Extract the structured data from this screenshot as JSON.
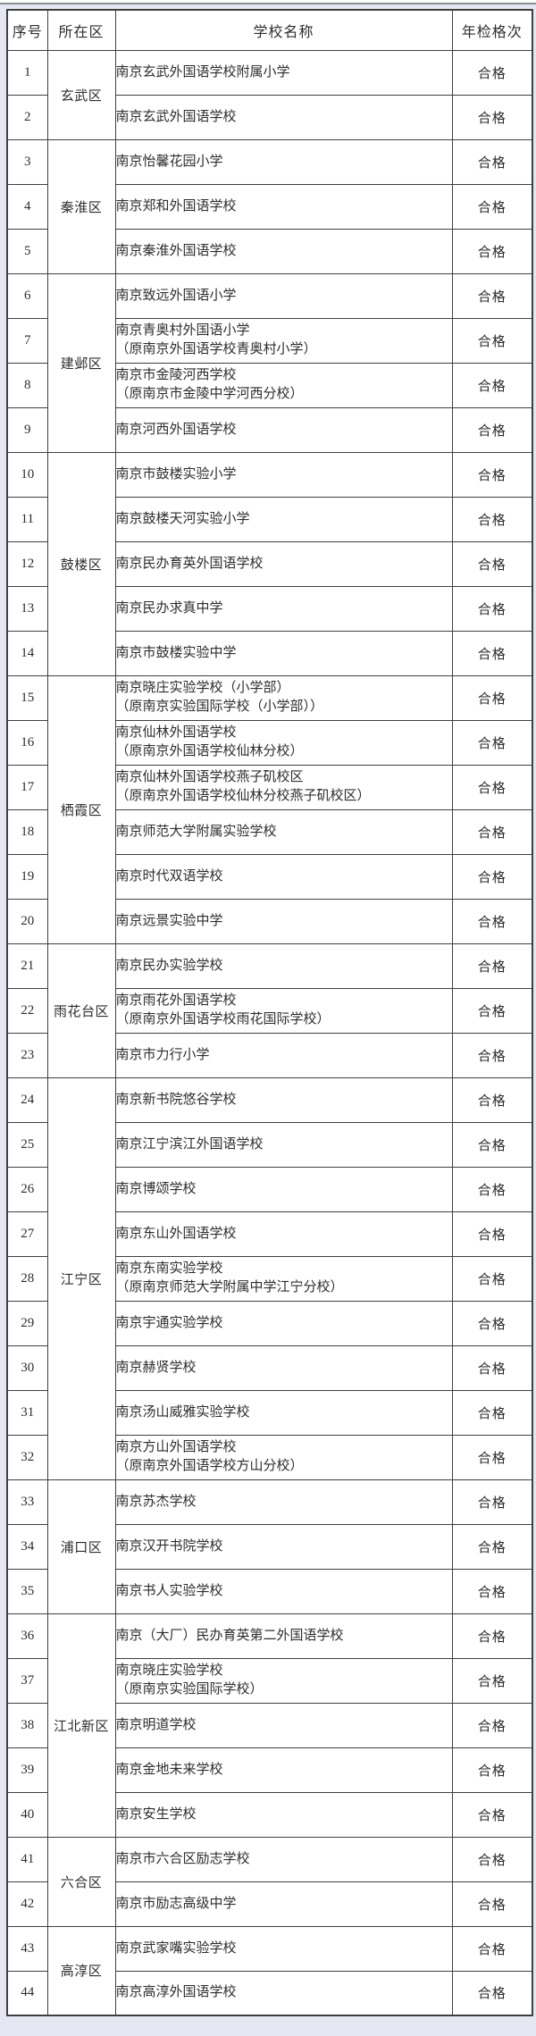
{
  "page": {
    "background_color": "#e5e8f2",
    "top_rule_color": "#8b8c90",
    "table_border_color": "#3f3f3f",
    "text_color": "#2d2d2d",
    "cell_background": "#ffffff"
  },
  "table": {
    "headers": {
      "seq": "序号",
      "district": "所在区",
      "school": "学校名称",
      "inspection": "年检格次"
    },
    "districts": [
      {
        "name": "玄武区",
        "schools": [
          {
            "seq": "1",
            "name": "南京玄武外国语学校附属小学",
            "status": "合格"
          },
          {
            "seq": "2",
            "name": "南京玄武外国语学校",
            "status": "合格"
          }
        ]
      },
      {
        "name": "秦淮区",
        "schools": [
          {
            "seq": "3",
            "name": "南京怡馨花园小学",
            "status": "合格"
          },
          {
            "seq": "4",
            "name": "南京郑和外国语学校",
            "status": "合格"
          },
          {
            "seq": "5",
            "name": "南京秦淮外国语学校",
            "status": "合格"
          }
        ]
      },
      {
        "name": "建邺区",
        "schools": [
          {
            "seq": "6",
            "name": "南京致远外国语小学",
            "status": "合格"
          },
          {
            "seq": "7",
            "name": "南京青奥村外国语小学",
            "former": "（原南京外国语学校青奥村小学）",
            "status": "合格"
          },
          {
            "seq": "8",
            "name": "南京市金陵河西学校",
            "former": "（原南京市金陵中学河西分校）",
            "status": "合格"
          },
          {
            "seq": "9",
            "name": "南京河西外国语学校",
            "status": "合格"
          }
        ]
      },
      {
        "name": "鼓楼区",
        "schools": [
          {
            "seq": "10",
            "name": "南京市鼓楼实验小学",
            "status": "合格"
          },
          {
            "seq": "11",
            "name": "南京鼓楼天河实验小学",
            "status": "合格"
          },
          {
            "seq": "12",
            "name": "南京民办育英外国语学校",
            "status": "合格"
          },
          {
            "seq": "13",
            "name": "南京民办求真中学",
            "status": "合格"
          },
          {
            "seq": "14",
            "name": "南京市鼓楼实验中学",
            "status": "合格"
          }
        ]
      },
      {
        "name": "栖霞区",
        "schools": [
          {
            "seq": "15",
            "name": "南京晓庄实验学校（小学部）",
            "former": "（原南京实验国际学校（小学部））",
            "status": "合格"
          },
          {
            "seq": "16",
            "name": "南京仙林外国语学校",
            "former": "（原南京外国语学校仙林分校）",
            "status": "合格"
          },
          {
            "seq": "17",
            "name": "南京仙林外国语学校燕子矶校区",
            "former": "（原南京外国语学校仙林分校燕子矶校区）",
            "status": "合格"
          },
          {
            "seq": "18",
            "name": "南京师范大学附属实验学校",
            "status": "合格"
          },
          {
            "seq": "19",
            "name": "南京时代双语学校",
            "status": "合格"
          },
          {
            "seq": "20",
            "name": "南京远景实验中学",
            "status": "合格"
          }
        ]
      },
      {
        "name": "雨花台区",
        "schools": [
          {
            "seq": "21",
            "name": "南京民办实验学校",
            "status": "合格"
          },
          {
            "seq": "22",
            "name": "南京雨花外国语学校",
            "former": "（原南京外国语学校雨花国际学校）",
            "status": "合格"
          },
          {
            "seq": "23",
            "name": "南京市力行小学",
            "status": "合格"
          }
        ]
      },
      {
        "name": "江宁区",
        "schools": [
          {
            "seq": "24",
            "name": "南京新书院悠谷学校",
            "status": "合格"
          },
          {
            "seq": "25",
            "name": "南京江宁滨江外国语学校",
            "status": "合格"
          },
          {
            "seq": "26",
            "name": "南京博颂学校",
            "status": "合格"
          },
          {
            "seq": "27",
            "name": "南京东山外国语学校",
            "status": "合格"
          },
          {
            "seq": "28",
            "name": "南京东南实验学校",
            "former": "（原南京师范大学附属中学江宁分校）",
            "status": "合格"
          },
          {
            "seq": "29",
            "name": "南京宇通实验学校",
            "status": "合格"
          },
          {
            "seq": "30",
            "name": "南京赫贤学校",
            "status": "合格"
          },
          {
            "seq": "31",
            "name": "南京汤山威雅实验学校",
            "status": "合格"
          },
          {
            "seq": "32",
            "name": "南京方山外国语学校",
            "former": "（原南京外国语学校方山分校）",
            "status": "合格"
          }
        ]
      },
      {
        "name": "浦口区",
        "schools": [
          {
            "seq": "33",
            "name": "南京苏杰学校",
            "status": "合格"
          },
          {
            "seq": "34",
            "name": "南京汉开书院学校",
            "status": "合格"
          },
          {
            "seq": "35",
            "name": "南京书人实验学校",
            "status": "合格"
          }
        ]
      },
      {
        "name": "江北新区",
        "schools": [
          {
            "seq": "36",
            "name": "南京（大厂）民办育英第二外国语学校",
            "status": "合格"
          },
          {
            "seq": "37",
            "name": "南京晓庄实验学校",
            "former": "（原南京实验国际学校）",
            "status": "合格"
          },
          {
            "seq": "38",
            "name": "南京明道学校",
            "status": "合格"
          },
          {
            "seq": "39",
            "name": "南京金地未来学校",
            "status": "合格"
          },
          {
            "seq": "40",
            "name": "南京安生学校",
            "status": "合格"
          }
        ]
      },
      {
        "name": "六合区",
        "schools": [
          {
            "seq": "41",
            "name": "南京市六合区励志学校",
            "status": "合格"
          },
          {
            "seq": "42",
            "name": "南京市励志高级中学",
            "status": "合格"
          }
        ]
      },
      {
        "name": "高淳区",
        "schools": [
          {
            "seq": "43",
            "name": "南京武家嘴实验学校",
            "status": "合格"
          },
          {
            "seq": "44",
            "name": "南京高淳外国语学校",
            "status": "合格"
          }
        ]
      }
    ]
  }
}
